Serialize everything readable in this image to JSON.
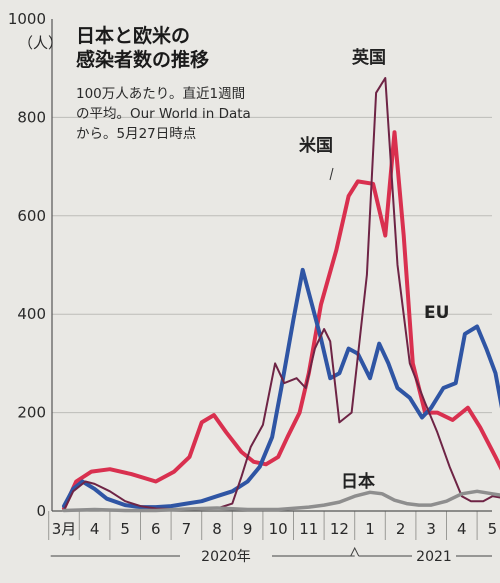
{
  "chart_data": {
    "type": "line",
    "title_lines": [
      "日本と欧米の",
      "感染者数の推移"
    ],
    "note_lines": [
      "100万人あたり。直近1週間",
      "の平均。Our World in Data",
      "から。5月27日時点"
    ],
    "y_unit": "（人）",
    "ylim": [
      0,
      1000
    ],
    "y_ticks": [
      "0",
      "200",
      "400",
      "600",
      "800",
      "1000"
    ],
    "x_ticks": [
      "3月",
      "4",
      "5",
      "6",
      "7",
      "8",
      "9",
      "10",
      "11",
      "12",
      "1",
      "2",
      "3",
      "4",
      "5"
    ],
    "years": [
      "2020年",
      "2021"
    ],
    "grid": true,
    "legend": "inline labels",
    "x_month_index_note": "x values are months from March 2020 (0 = March 2020, 14 = May 2021)",
    "series": [
      {
        "name": "米国",
        "color": "#d9304f",
        "x": [
          0,
          0.4,
          0.9,
          1.5,
          2.2,
          3.0,
          3.6,
          4.1,
          4.5,
          4.9,
          5.3,
          5.8,
          6.2,
          6.6,
          7.0,
          7.3,
          7.7,
          8.0,
          8.4,
          8.9,
          9.3,
          9.6,
          10.1,
          10.5,
          10.8,
          11.1,
          11.4,
          11.8,
          12.2,
          12.7,
          13.2,
          13.6,
          14.1,
          14.5
        ],
        "y": [
          5,
          60,
          80,
          85,
          75,
          60,
          80,
          110,
          180,
          195,
          160,
          120,
          100,
          95,
          110,
          150,
          200,
          280,
          420,
          530,
          640,
          670,
          665,
          560,
          770,
          560,
          300,
          200,
          200,
          185,
          210,
          170,
          110,
          60
        ]
      },
      {
        "name": "EU",
        "color": "#2f55a4",
        "x": [
          0,
          0.3,
          0.6,
          1.0,
          1.4,
          2.0,
          2.5,
          3.0,
          3.5,
          4.0,
          4.5,
          5.0,
          5.5,
          6.0,
          6.4,
          6.8,
          7.1,
          7.5,
          7.8,
          8.1,
          8.4,
          8.7,
          9.0,
          9.3,
          9.6,
          10.0,
          10.3,
          10.6,
          10.9,
          11.3,
          11.7,
          12.0,
          12.4,
          12.8,
          13.1,
          13.5,
          13.8,
          14.1,
          14.4,
          14.6
        ],
        "y": [
          10,
          45,
          60,
          45,
          25,
          12,
          8,
          8,
          10,
          15,
          20,
          30,
          40,
          60,
          90,
          150,
          250,
          390,
          490,
          420,
          350,
          270,
          280,
          330,
          320,
          270,
          340,
          300,
          250,
          230,
          190,
          210,
          250,
          260,
          360,
          375,
          330,
          280,
          180,
          75
        ]
      },
      {
        "name": "英国",
        "color": "#6e2445",
        "x": [
          0,
          0.3,
          0.7,
          1.0,
          1.5,
          2.0,
          2.5,
          3.0,
          4.0,
          5.0,
          5.5,
          5.8,
          6.1,
          6.5,
          6.9,
          7.2,
          7.6,
          7.9,
          8.2,
          8.5,
          8.7,
          9.0,
          9.4,
          9.9,
          10.2,
          10.5,
          10.9,
          11.3,
          11.8,
          12.2,
          12.6,
          13.0,
          13.3,
          13.7,
          14.0,
          14.5
        ],
        "y": [
          2,
          40,
          60,
          55,
          40,
          20,
          10,
          5,
          3,
          5,
          15,
          70,
          130,
          175,
          300,
          260,
          270,
          250,
          330,
          370,
          345,
          180,
          200,
          480,
          850,
          880,
          500,
          300,
          220,
          160,
          90,
          30,
          20,
          20,
          30,
          25
        ]
      },
      {
        "name": "日本",
        "color": "#8e8e8e",
        "x": [
          0,
          1.0,
          2.0,
          3.0,
          4.0,
          5.0,
          6.0,
          7.0,
          8.0,
          8.5,
          9.0,
          9.5,
          10.0,
          10.4,
          10.8,
          11.2,
          11.6,
          12.0,
          12.5,
          13.0,
          13.5,
          14.0,
          14.5
        ],
        "y": [
          1,
          3,
          1,
          1,
          4,
          6,
          3,
          3,
          8,
          12,
          18,
          30,
          38,
          35,
          22,
          15,
          12,
          12,
          20,
          35,
          40,
          35,
          30
        ]
      }
    ],
    "series_labels": {
      "us": "米国",
      "uk": "英国",
      "eu": "EU",
      "jp": "日本"
    }
  }
}
